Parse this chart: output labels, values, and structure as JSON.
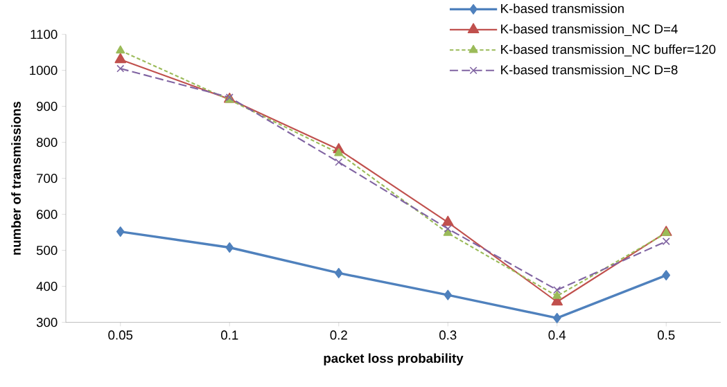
{
  "chart_data": {
    "type": "line",
    "xlabel": "packet loss probability",
    "ylabel": "number of transmissions",
    "categories": [
      "0.05",
      "0.1",
      "0.2",
      "0.3",
      "0.4",
      "0.5"
    ],
    "series": [
      {
        "name": "K-based transmission",
        "color": "#4f81bd",
        "marker": "diamond",
        "line_style": "solid",
        "values": [
          552,
          508,
          437,
          376,
          312,
          431
        ]
      },
      {
        "name": "K-based transmission_NC D=4",
        "color": "#c0504d",
        "marker": "triangle",
        "line_style": "solid",
        "values": [
          1030,
          920,
          780,
          578,
          357,
          550
        ]
      },
      {
        "name": "K-based transmission_NC buffer=120",
        "color": "#9bbb59",
        "marker": "triangle",
        "line_style": "dotted",
        "values": [
          1055,
          918,
          770,
          548,
          373,
          548
        ]
      },
      {
        "name": "K-based transmission_NC D=8",
        "color": "#8064a2",
        "marker": "cross",
        "line_style": "dashed",
        "values": [
          1005,
          925,
          745,
          560,
          390,
          525
        ]
      }
    ],
    "ylim": [
      300,
      1100
    ],
    "yticks": [
      300,
      400,
      500,
      600,
      700,
      800,
      900,
      1000,
      1100
    ],
    "grid": false,
    "legend": "top right"
  }
}
